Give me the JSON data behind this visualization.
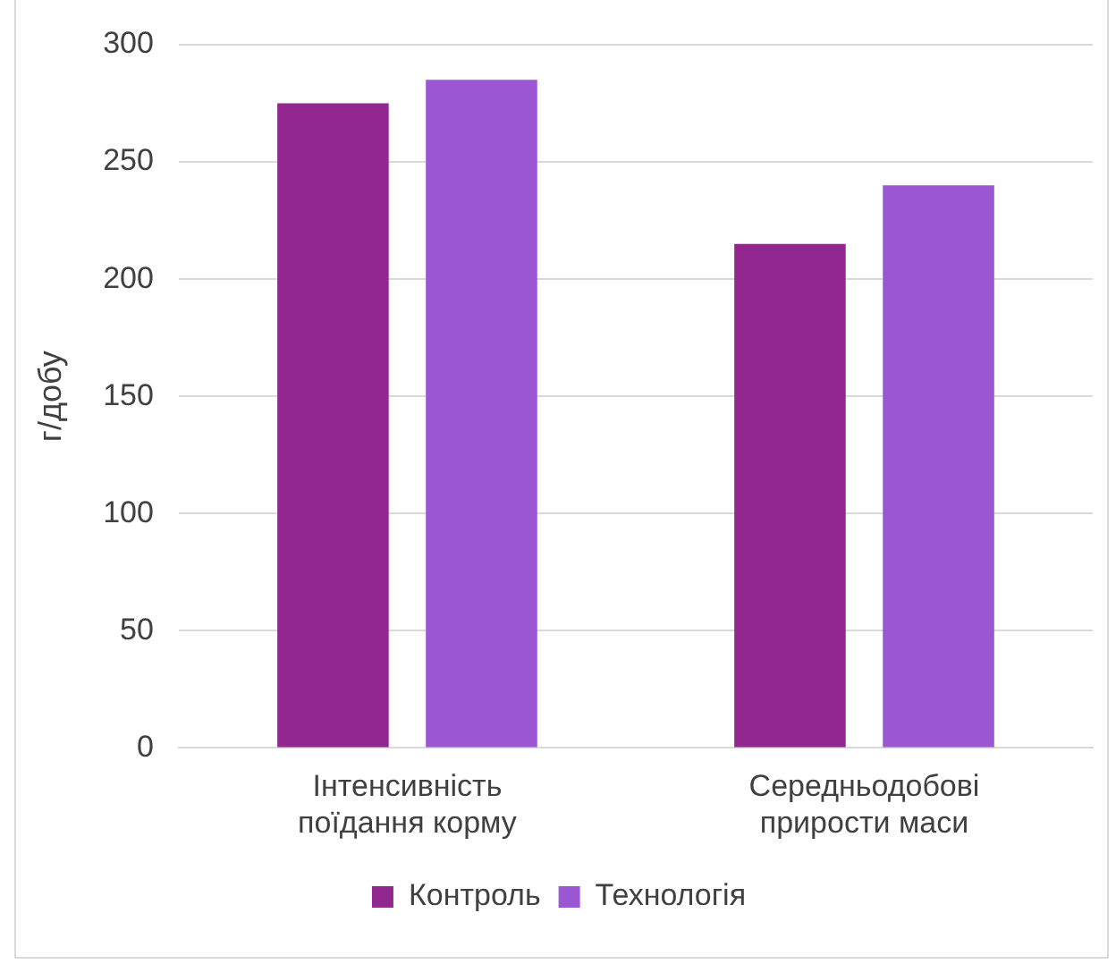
{
  "chart_data": {
    "type": "bar",
    "ylabel": "г/добу",
    "categories": [
      "Інтенсивність поїдання корму",
      "Середньодобові прирости маси"
    ],
    "series": [
      {
        "name": "Контроль",
        "color": "#92278f",
        "values": [
          275,
          215
        ]
      },
      {
        "name": "Технологія",
        "color": "#9b57d3",
        "values": [
          285,
          240
        ]
      }
    ],
    "ylim": [
      0,
      300
    ],
    "yticks": [
      0,
      50,
      100,
      150,
      200,
      250,
      300
    ],
    "grid": "y",
    "legend": "bottom"
  }
}
